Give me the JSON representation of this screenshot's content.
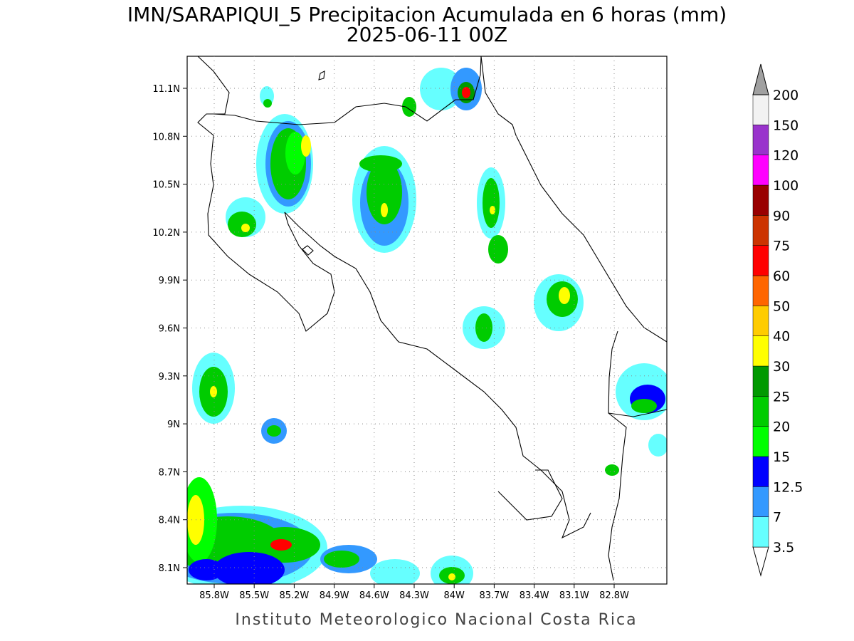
{
  "map": {
    "title": "IMN/SARAPIQUI_5 Precipitacion Acumulada en 6 horas (mm)",
    "subtitle": "2025-06-11 00Z",
    "lon_ticks": [
      "85.8W",
      "85.5W",
      "85.2W",
      "84.9W",
      "84.6W",
      "84.3W",
      "84W",
      "83.7W",
      "83.4W",
      "83.1W",
      "82.8W"
    ],
    "lat_ticks": [
      "11.1N",
      "10.8N",
      "10.5N",
      "10.2N",
      "9.9N",
      "9.6N",
      "9.3N",
      "9N",
      "8.7N",
      "8.4N",
      "8.1N"
    ],
    "footer": "Instituto Meteorologico Nacional Costa Rica"
  },
  "legend": {
    "levels": [
      3.5,
      7,
      12.5,
      15,
      20,
      25,
      30,
      40,
      50,
      60,
      75,
      90,
      100,
      120,
      150,
      200
    ],
    "colors": [
      "#ffffff",
      "#66ffff",
      "#3399ff",
      "#0000ff",
      "#00ff00",
      "#00cc00",
      "#009900",
      "#ffff00",
      "#ffcc00",
      "#ff6600",
      "#ff0000",
      "#cc3300",
      "#990000",
      "#ff00ff",
      "#9933cc",
      "#f2f2f2",
      "#a0a0a0"
    ]
  }
}
